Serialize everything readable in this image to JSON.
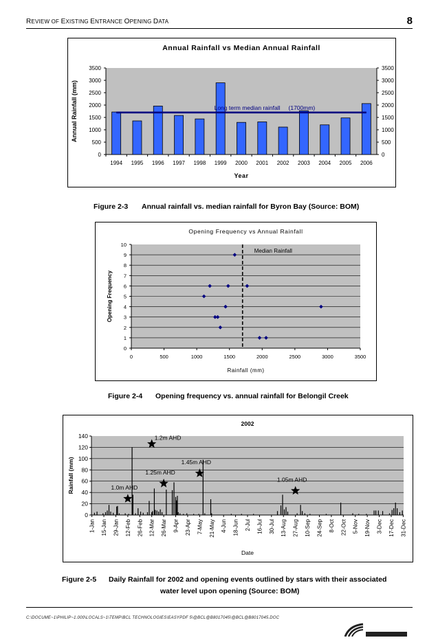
{
  "header": {
    "title_parts": [
      "R",
      "EVIEW OF ",
      "E",
      "XISTING ",
      "E",
      "NTRANCE ",
      "O",
      "PENING ",
      "D",
      "ATA"
    ],
    "page_number": "8"
  },
  "figures": [
    {
      "caption_number": "Figure 2-3",
      "caption_text": "Annual rainfall vs. median rainfall for Byron Bay (Source: BOM)"
    },
    {
      "caption_number": "Figure 2-4",
      "caption_text": "Opening frequency vs. annual rainfall for Belongil Creek"
    },
    {
      "caption_number": "Figure 2-5",
      "caption_text": "Daily Rainfall for 2002 and opening events outlined by stars with their associated",
      "caption_text_2": "water level upon opening (Source: BOM)"
    }
  ],
  "footer": {
    "path": "C:\\DOCUME~1\\PHILIP~1.000\\LOCALS~1\\TEMP\\BCL TECHNOLOGIES\\EASYPDF 5\\@BCL@B8017045\\@BCL@B8017045.DOC"
  },
  "colors": {
    "plot_bg": "#c0c0c0",
    "bar_blue": "#3366ff",
    "median_line": "#000080",
    "point_blue": "#000080"
  },
  "chart_data": [
    {
      "type": "bar",
      "title": "Annual Rainfall vs Median Annual Rainfall",
      "xlabel": "Year",
      "ylabel": "Annual Rainfall (mm)",
      "categories": [
        "1994",
        "1995",
        "1996",
        "1997",
        "1998",
        "1999",
        "2000",
        "2001",
        "2002",
        "2003",
        "2004",
        "2005",
        "2006"
      ],
      "values": [
        1720,
        1360,
        1960,
        1580,
        1440,
        2900,
        1300,
        1320,
        1110,
        1770,
        1200,
        1480,
        2060
      ],
      "ylim": [
        0,
        3500
      ],
      "yticks": [
        0,
        500,
        1000,
        1500,
        2000,
        2500,
        3000,
        3500
      ],
      "secondary_y_axis": true,
      "reference_line": {
        "value": 1700,
        "label": "Long term median rainfall",
        "label_value": "(1700mm)"
      },
      "grid": false
    },
    {
      "type": "scatter",
      "title": "Opening Frequency vs Annual Rainfall",
      "xlabel": "Rainfall (mm)",
      "ylabel": "Opening Frequency",
      "xlim": [
        0,
        3500
      ],
      "ylim": [
        0,
        10
      ],
      "xticks": [
        0,
        500,
        1000,
        1500,
        2000,
        2500,
        3000,
        3500
      ],
      "yticks": [
        0,
        1,
        2,
        3,
        4,
        5,
        6,
        7,
        8,
        9,
        10
      ],
      "points": [
        {
          "x": 1110,
          "y": 5
        },
        {
          "x": 1200,
          "y": 6
        },
        {
          "x": 1280,
          "y": 3
        },
        {
          "x": 1320,
          "y": 3
        },
        {
          "x": 1360,
          "y": 2
        },
        {
          "x": 1440,
          "y": 4
        },
        {
          "x": 1480,
          "y": 6
        },
        {
          "x": 1580,
          "y": 9
        },
        {
          "x": 1770,
          "y": 6
        },
        {
          "x": 1960,
          "y": 1
        },
        {
          "x": 2060,
          "y": 1
        },
        {
          "x": 2900,
          "y": 4
        }
      ],
      "reference_line": {
        "x": 1700,
        "label": "Median Rainfall"
      },
      "grid": "horizontal"
    },
    {
      "type": "bar",
      "title": "2002",
      "xlabel": "Date",
      "ylabel": "Rainfall (mm)",
      "ylim": [
        0,
        140
      ],
      "yticks": [
        0,
        20,
        40,
        60,
        80,
        100,
        120,
        140
      ],
      "x_tick_labels": [
        "1-Jan",
        "15-Jan",
        "29-Jan",
        "12-Feb",
        "26-Feb",
        "12-Mar",
        "26-Mar",
        "9-Apr",
        "23-Apr",
        "7-May",
        "21-May",
        "4-Jun",
        "18-Jun",
        "2-Jul",
        "16-Jul",
        "30-Jul",
        "13-Aug",
        "27-Aug",
        "10-Sep",
        "24-Sep",
        "8-Oct",
        "22-Oct",
        "5-Nov",
        "19-Nov",
        "3-Dec",
        "17-Dec",
        "31-Dec"
      ],
      "daily": [
        {
          "day": 4,
          "mm": 4
        },
        {
          "day": 7,
          "mm": 6
        },
        {
          "day": 14,
          "mm": 3
        },
        {
          "day": 17,
          "mm": 5
        },
        {
          "day": 19,
          "mm": 8
        },
        {
          "day": 21,
          "mm": 18
        },
        {
          "day": 23,
          "mm": 6
        },
        {
          "day": 26,
          "mm": 4
        },
        {
          "day": 30,
          "mm": 15
        },
        {
          "day": 31,
          "mm": 16
        },
        {
          "day": 33,
          "mm": 3
        },
        {
          "day": 40,
          "mm": 3
        },
        {
          "day": 44,
          "mm": 2
        },
        {
          "day": 48,
          "mm": 120
        },
        {
          "day": 49,
          "mm": 36
        },
        {
          "day": 52,
          "mm": 3
        },
        {
          "day": 55,
          "mm": 12
        },
        {
          "day": 58,
          "mm": 6
        },
        {
          "day": 61,
          "mm": 4
        },
        {
          "day": 66,
          "mm": 5
        },
        {
          "day": 68,
          "mm": 25
        },
        {
          "day": 71,
          "mm": 5
        },
        {
          "day": 72,
          "mm": 7
        },
        {
          "day": 74,
          "mm": 47
        },
        {
          "day": 75,
          "mm": 9
        },
        {
          "day": 77,
          "mm": 8
        },
        {
          "day": 79,
          "mm": 6
        },
        {
          "day": 81,
          "mm": 10
        },
        {
          "day": 83,
          "mm": 5
        },
        {
          "day": 88,
          "mm": 45
        },
        {
          "day": 95,
          "mm": 44
        },
        {
          "day": 97,
          "mm": 58
        },
        {
          "day": 99,
          "mm": 32
        },
        {
          "day": 100,
          "mm": 26
        },
        {
          "day": 101,
          "mm": 34
        },
        {
          "day": 102,
          "mm": 5
        },
        {
          "day": 104,
          "mm": 3
        },
        {
          "day": 108,
          "mm": 2
        },
        {
          "day": 112,
          "mm": 3
        },
        {
          "day": 120,
          "mm": 2
        },
        {
          "day": 126,
          "mm": 2
        },
        {
          "day": 131,
          "mm": 98
        },
        {
          "day": 133,
          "mm": 3
        },
        {
          "day": 140,
          "mm": 28
        },
        {
          "day": 141,
          "mm": 3
        },
        {
          "day": 164,
          "mm": 2
        },
        {
          "day": 176,
          "mm": 2
        },
        {
          "day": 190,
          "mm": 2
        },
        {
          "day": 218,
          "mm": 7
        },
        {
          "day": 222,
          "mm": 17
        },
        {
          "day": 224,
          "mm": 36
        },
        {
          "day": 226,
          "mm": 10
        },
        {
          "day": 228,
          "mm": 14
        },
        {
          "day": 230,
          "mm": 6
        },
        {
          "day": 241,
          "mm": 3
        },
        {
          "day": 245,
          "mm": 18
        },
        {
          "day": 247,
          "mm": 7
        },
        {
          "day": 250,
          "mm": 3
        },
        {
          "day": 256,
          "mm": 2
        },
        {
          "day": 275,
          "mm": 2
        },
        {
          "day": 292,
          "mm": 22
        },
        {
          "day": 306,
          "mm": 3
        },
        {
          "day": 313,
          "mm": 2
        },
        {
          "day": 322,
          "mm": 2
        },
        {
          "day": 331,
          "mm": 8
        },
        {
          "day": 333,
          "mm": 8
        },
        {
          "day": 336,
          "mm": 8
        },
        {
          "day": 341,
          "mm": 7
        },
        {
          "day": 349,
          "mm": 3
        },
        {
          "day": 352,
          "mm": 9
        },
        {
          "day": 354,
          "mm": 12
        },
        {
          "day": 356,
          "mm": 22
        },
        {
          "day": 358,
          "mm": 12
        },
        {
          "day": 361,
          "mm": 5
        },
        {
          "day": 364,
          "mm": 8
        }
      ],
      "opening_events": [
        {
          "date": "12-Feb",
          "level": "1.0m AHD",
          "rainfall_mm": 29
        },
        {
          "date": "12-Mar",
          "level": "1.2m AHD",
          "rainfall_mm": 126
        },
        {
          "date": "26-Mar",
          "level": "1.25m AHD",
          "rainfall_mm": 56
        },
        {
          "date": "7-May",
          "level": "1.45m AHD",
          "rainfall_mm": 74
        },
        {
          "date": "27-Aug",
          "level": "1.05m AHD",
          "rainfall_mm": 43
        }
      ],
      "grid": "horizontal"
    }
  ]
}
